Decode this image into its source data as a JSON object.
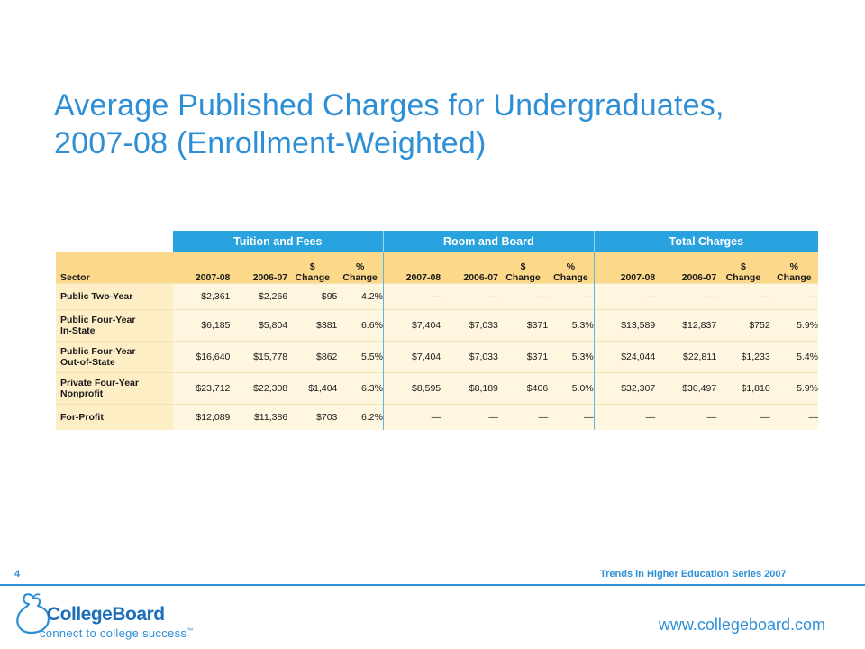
{
  "slide": {
    "title_line1": "Average Published Charges for Undergraduates,",
    "title_line2": "2007-08 (Enrollment-Weighted)"
  },
  "table": {
    "groups": [
      "Tuition and Fees",
      "Room and Board",
      "Total Charges"
    ],
    "sector_header": "Sector",
    "columns": {
      "year1": "2007-08",
      "year2": "2006-07",
      "dollar_change_1": "$",
      "dollar_change_2": "Change",
      "pct_change_1": "%",
      "pct_change_2": "Change"
    },
    "rows": [
      {
        "sector_line1": "Public Two-Year",
        "sector_line2": "",
        "tf": [
          "$2,361",
          "$2,266",
          "$95",
          "4.2%"
        ],
        "rb": [
          "—",
          "—",
          "—",
          "—"
        ],
        "tc": [
          "—",
          "—",
          "—",
          "—"
        ]
      },
      {
        "sector_line1": "Public Four-Year",
        "sector_line2": "In-State",
        "tf": [
          "$6,185",
          "$5,804",
          "$381",
          "6.6%"
        ],
        "rb": [
          "$7,404",
          "$7,033",
          "$371",
          "5.3%"
        ],
        "tc": [
          "$13,589",
          "$12,837",
          "$752",
          "5.9%"
        ]
      },
      {
        "sector_line1": "Public Four-Year",
        "sector_line2": "Out-of-State",
        "tf": [
          "$16,640",
          "$15,778",
          "$862",
          "5.5%"
        ],
        "rb": [
          "$7,404",
          "$7,033",
          "$371",
          "5.3%"
        ],
        "tc": [
          "$24,044",
          "$22,811",
          "$1,233",
          "5.4%"
        ]
      },
      {
        "sector_line1": "Private Four-Year",
        "sector_line2": "Nonprofit",
        "tf": [
          "$23,712",
          "$22,308",
          "$1,404",
          "6.3%"
        ],
        "rb": [
          "$8,595",
          "$8,189",
          "$406",
          "5.0%"
        ],
        "tc": [
          "$32,307",
          "$30,497",
          "$1,810",
          "5.9%"
        ]
      },
      {
        "sector_line1": "For-Profit",
        "sector_line2": "",
        "tf": [
          "$12,089",
          "$11,386",
          "$703",
          "6.2%"
        ],
        "rb": [
          "—",
          "—",
          "—",
          "—"
        ],
        "tc": [
          "—",
          "—",
          "—",
          "—"
        ]
      }
    ]
  },
  "footer": {
    "page_number": "4",
    "series": "Trends in Higher Education Series 2007",
    "website": "www.collegeboard.com",
    "logo_name": "CollegeBoard",
    "logo_tagline": "connect to college success",
    "logo_tm": "™"
  },
  "colors": {
    "title_blue": "#2e8fd6",
    "header_blue": "#29a3e0",
    "header_gold": "#fcd98a",
    "row_cream": "#fef6df"
  },
  "icons": {
    "logo": "acorn-logo-icon"
  }
}
